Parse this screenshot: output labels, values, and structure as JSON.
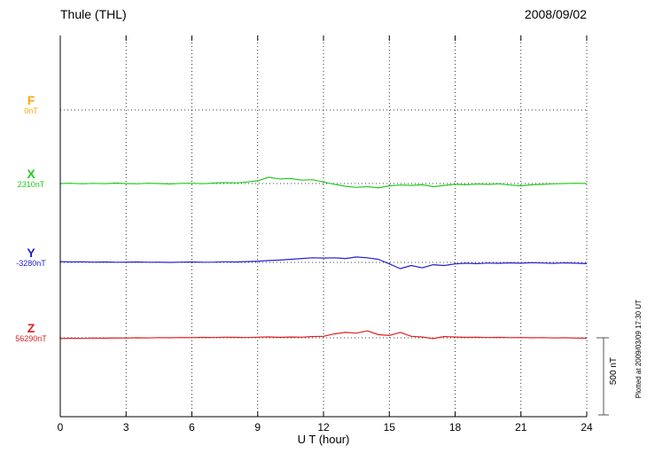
{
  "header": {
    "title": "Thule (THL)",
    "date": "2008/09/02"
  },
  "axis": {
    "xlabel": "U T (hour)",
    "ticks": [
      0,
      3,
      6,
      9,
      12,
      15,
      18,
      21,
      24
    ]
  },
  "scale_bar": {
    "label": "500 nT",
    "nT": 500
  },
  "footer_note": "Plotted at 2009/03/09 17:30 UT",
  "series_labels": [
    {
      "name": "F",
      "baseline": "0nT",
      "color": "#FFA500"
    },
    {
      "name": "X",
      "baseline": "2310nT",
      "color": "#22CC22"
    },
    {
      "name": "Y",
      "baseline": "-3280nT",
      "color": "#2222CC"
    },
    {
      "name": "Z",
      "baseline": "56290nT",
      "color": "#DD2222"
    }
  ],
  "chart_data": {
    "type": "line",
    "title": "Thule (THL) magnetogram 2008/09/02",
    "xlabel": "U T (hour)",
    "x_unit": "hour",
    "x_range": [
      0,
      24
    ],
    "x_step": 0.5,
    "scale": {
      "bar_nT": 500
    },
    "series": [
      {
        "name": "F",
        "baseline_nT": 0,
        "color": "#FFA500",
        "draw": false,
        "values": [
          0,
          0,
          0,
          0,
          0,
          0,
          0,
          0,
          0,
          0,
          0,
          0,
          0,
          0,
          0,
          0,
          0,
          0,
          0,
          0,
          0,
          0,
          0,
          0,
          0,
          0,
          0,
          0,
          0,
          0,
          0,
          0,
          0,
          0,
          0,
          0,
          0,
          0,
          0,
          0,
          0,
          0,
          0,
          0,
          0,
          0,
          0,
          0,
          0
        ]
      },
      {
        "name": "X",
        "baseline_nT": 2310,
        "color": "#22CC22",
        "draw": true,
        "values": [
          0,
          2,
          -2,
          1,
          -1,
          3,
          0,
          -2,
          2,
          0,
          -3,
          1,
          2,
          -1,
          3,
          6,
          4,
          10,
          18,
          40,
          30,
          32,
          22,
          25,
          10,
          -5,
          -18,
          -25,
          -20,
          -28,
          -15,
          -10,
          -12,
          -8,
          -20,
          -12,
          -5,
          -8,
          -3,
          -6,
          -2,
          -10,
          -15,
          -8,
          -5,
          -2,
          0,
          2,
          0
        ]
      },
      {
        "name": "Y",
        "baseline_nT": -3280,
        "color": "#2222CC",
        "draw": true,
        "values": [
          5,
          3,
          4,
          2,
          3,
          1,
          2,
          3,
          1,
          2,
          0,
          2,
          3,
          1,
          2,
          4,
          3,
          5,
          8,
          12,
          15,
          20,
          25,
          30,
          28,
          30,
          25,
          35,
          30,
          20,
          -10,
          -40,
          -20,
          -35,
          -15,
          -20,
          -10,
          -5,
          -8,
          -4,
          -6,
          -3,
          -5,
          -2,
          -4,
          -6,
          -3,
          -5,
          -8
        ]
      },
      {
        "name": "Z",
        "baseline_nT": 56290,
        "color": "#DD2222",
        "draw": true,
        "values": [
          -5,
          -3,
          -4,
          -2,
          -3,
          -1,
          -2,
          0,
          -1,
          1,
          0,
          2,
          1,
          3,
          2,
          4,
          3,
          2,
          4,
          6,
          3,
          5,
          4,
          8,
          10,
          25,
          35,
          30,
          45,
          20,
          15,
          35,
          10,
          5,
          -5,
          8,
          5,
          3,
          4,
          2,
          3,
          1,
          2,
          0,
          1,
          -1,
          0,
          -2,
          -3
        ]
      }
    ]
  }
}
